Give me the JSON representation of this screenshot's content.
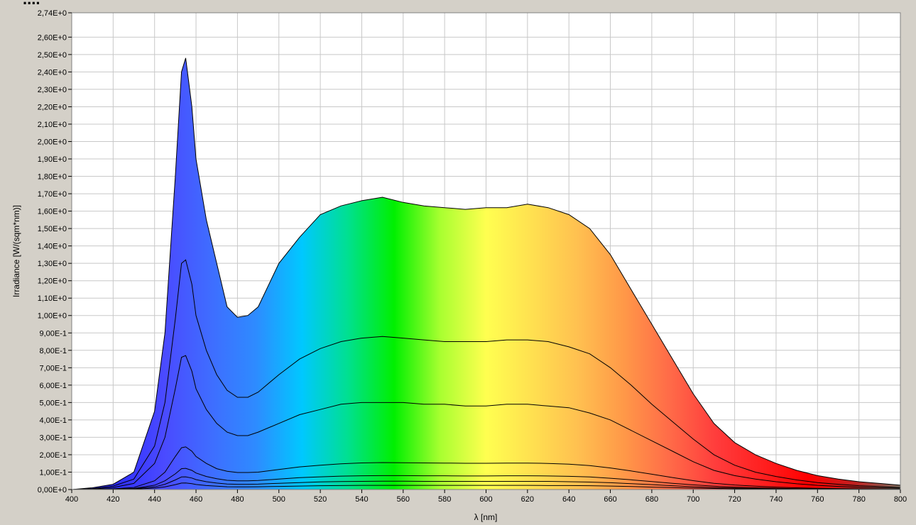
{
  "chart_data": {
    "type": "area",
    "title": "",
    "xlabel": "λ [nm]",
    "ylabel": "Irradiance [W/(sqm*nm)]",
    "xlim": [
      400,
      800
    ],
    "ylim": [
      0,
      2.74
    ],
    "grid": true,
    "x_ticks": [
      "400",
      "420",
      "440",
      "460",
      "480",
      "500",
      "520",
      "540",
      "560",
      "580",
      "600",
      "620",
      "640",
      "660",
      "680",
      "700",
      "720",
      "740",
      "760",
      "780",
      "800"
    ],
    "y_ticks": [
      "0,00E+0",
      "1,00E-1",
      "2,00E-1",
      "3,00E-1",
      "4,00E-1",
      "5,00E-1",
      "6,00E-1",
      "7,00E-1",
      "8,00E-1",
      "9,00E-1",
      "1,00E+0",
      "1,10E+0",
      "1,20E+0",
      "1,30E+0",
      "1,40E+0",
      "1,50E+0",
      "1,60E+0",
      "1,70E+0",
      "1,80E+0",
      "1,90E+0",
      "2,00E+0",
      "2,10E+0",
      "2,20E+0",
      "2,30E+0",
      "2,40E+0",
      "2,50E+0",
      "2,60E+0",
      "2,74E+0"
    ],
    "y_tick_values": [
      0,
      0.1,
      0.2,
      0.3,
      0.4,
      0.5,
      0.6,
      0.7,
      0.8,
      0.9,
      1.0,
      1.1,
      1.2,
      1.3,
      1.4,
      1.5,
      1.6,
      1.7,
      1.8,
      1.9,
      2.0,
      2.1,
      2.2,
      2.3,
      2.4,
      2.5,
      2.6,
      2.74
    ],
    "x": [
      400,
      410,
      420,
      430,
      440,
      445,
      450,
      453,
      455,
      458,
      460,
      465,
      470,
      475,
      480,
      485,
      490,
      500,
      510,
      520,
      530,
      540,
      550,
      560,
      570,
      580,
      590,
      600,
      610,
      620,
      630,
      640,
      650,
      660,
      670,
      680,
      690,
      700,
      710,
      720,
      730,
      740,
      750,
      760,
      770,
      780,
      790,
      800
    ],
    "series": [
      {
        "values": [
          0.0,
          0.01,
          0.03,
          0.1,
          0.45,
          0.9,
          1.8,
          2.4,
          2.48,
          2.2,
          1.9,
          1.55,
          1.3,
          1.05,
          0.99,
          1.0,
          1.05,
          1.3,
          1.45,
          1.58,
          1.63,
          1.66,
          1.68,
          1.65,
          1.63,
          1.62,
          1.61,
          1.62,
          1.62,
          1.64,
          1.62,
          1.58,
          1.5,
          1.35,
          1.15,
          0.95,
          0.75,
          0.55,
          0.38,
          0.27,
          0.2,
          0.15,
          0.11,
          0.08,
          0.06,
          0.045,
          0.035,
          0.025
        ]
      },
      {
        "values": [
          0.0,
          0.005,
          0.02,
          0.06,
          0.25,
          0.5,
          0.98,
          1.3,
          1.32,
          1.18,
          1.0,
          0.8,
          0.66,
          0.57,
          0.53,
          0.53,
          0.56,
          0.66,
          0.75,
          0.81,
          0.85,
          0.87,
          0.88,
          0.87,
          0.86,
          0.85,
          0.85,
          0.85,
          0.86,
          0.86,
          0.85,
          0.82,
          0.78,
          0.7,
          0.6,
          0.49,
          0.39,
          0.29,
          0.2,
          0.14,
          0.1,
          0.075,
          0.055,
          0.04,
          0.03,
          0.022,
          0.017,
          0.012
        ]
      },
      {
        "values": [
          0.0,
          0.003,
          0.012,
          0.035,
          0.15,
          0.3,
          0.58,
          0.76,
          0.77,
          0.68,
          0.58,
          0.46,
          0.38,
          0.33,
          0.31,
          0.31,
          0.33,
          0.38,
          0.43,
          0.46,
          0.49,
          0.5,
          0.5,
          0.5,
          0.49,
          0.49,
          0.48,
          0.48,
          0.49,
          0.49,
          0.48,
          0.47,
          0.44,
          0.4,
          0.34,
          0.28,
          0.22,
          0.16,
          0.11,
          0.08,
          0.06,
          0.045,
          0.033,
          0.024,
          0.018,
          0.013,
          0.01,
          0.007
        ]
      },
      {
        "values": [
          0.0,
          0.001,
          0.004,
          0.012,
          0.05,
          0.1,
          0.19,
          0.24,
          0.245,
          0.22,
          0.19,
          0.15,
          0.12,
          0.105,
          0.098,
          0.098,
          0.1,
          0.115,
          0.13,
          0.14,
          0.148,
          0.153,
          0.155,
          0.154,
          0.153,
          0.152,
          0.151,
          0.151,
          0.152,
          0.152,
          0.15,
          0.146,
          0.138,
          0.124,
          0.107,
          0.088,
          0.069,
          0.051,
          0.036,
          0.026,
          0.019,
          0.014,
          0.01,
          0.007,
          0.005,
          0.004,
          0.003,
          0.002
        ]
      },
      {
        "values": [
          0.0,
          0.0005,
          0.002,
          0.006,
          0.025,
          0.05,
          0.09,
          0.12,
          0.122,
          0.11,
          0.095,
          0.075,
          0.062,
          0.053,
          0.05,
          0.05,
          0.052,
          0.06,
          0.068,
          0.073,
          0.077,
          0.079,
          0.08,
          0.08,
          0.079,
          0.079,
          0.078,
          0.078,
          0.079,
          0.079,
          0.078,
          0.076,
          0.072,
          0.065,
          0.056,
          0.046,
          0.036,
          0.027,
          0.019,
          0.014,
          0.01,
          0.007,
          0.005,
          0.004,
          0.003,
          0.002,
          0.0015,
          0.001
        ]
      },
      {
        "values": [
          0.0,
          0.0003,
          0.001,
          0.004,
          0.015,
          0.03,
          0.055,
          0.072,
          0.073,
          0.066,
          0.057,
          0.045,
          0.037,
          0.032,
          0.03,
          0.03,
          0.031,
          0.036,
          0.04,
          0.044,
          0.046,
          0.047,
          0.048,
          0.048,
          0.047,
          0.047,
          0.047,
          0.047,
          0.047,
          0.047,
          0.047,
          0.045,
          0.043,
          0.039,
          0.034,
          0.028,
          0.022,
          0.016,
          0.011,
          0.008,
          0.006,
          0.004,
          0.003,
          0.002,
          0.0015,
          0.001,
          0.0008,
          0.0005
        ]
      },
      {
        "values": [
          0.0,
          0.0001,
          0.0005,
          0.002,
          0.008,
          0.015,
          0.028,
          0.037,
          0.038,
          0.034,
          0.029,
          0.023,
          0.019,
          0.016,
          0.015,
          0.015,
          0.016,
          0.018,
          0.02,
          0.022,
          0.023,
          0.024,
          0.024,
          0.024,
          0.024,
          0.024,
          0.024,
          0.024,
          0.024,
          0.024,
          0.023,
          0.023,
          0.022,
          0.02,
          0.017,
          0.014,
          0.011,
          0.008,
          0.006,
          0.004,
          0.003,
          0.002,
          0.0015,
          0.001,
          0.0008,
          0.0005,
          0.0004,
          0.0003
        ]
      }
    ],
    "spectrum_colors": [
      "#2020ff",
      "#3030ff",
      "#4a4aff",
      "#3f6cff",
      "#2e8bff",
      "#00c8ff",
      "#00e090",
      "#00f000",
      "#a8ff30",
      "#ffff50",
      "#ffe050",
      "#ffc050",
      "#ff9848",
      "#ff6a48",
      "#ff3c3c",
      "#ff2020",
      "#ff0000",
      "#c02020",
      "#807060"
    ],
    "colors": {
      "frame": "#d4d0c8",
      "plot_bg": "#ffffff",
      "grid": "#c8c8c8",
      "curve": "#000000"
    }
  },
  "title_text": "...."
}
